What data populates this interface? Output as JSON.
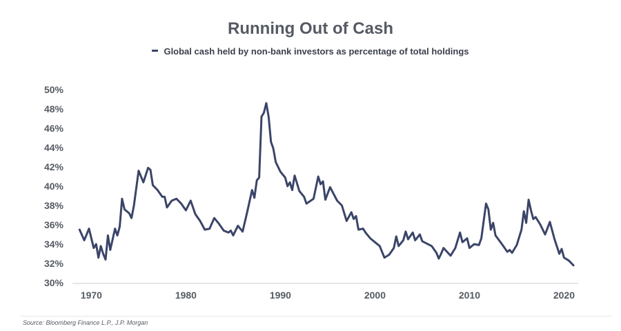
{
  "chart_data": {
    "type": "line",
    "title": "Running Out of Cash",
    "series": [
      {
        "name": "Global cash held by non-bank investors as percentage of total holdings",
        "color": "#3b4468",
        "points": [
          [
            1968.75,
            35.5
          ],
          [
            1969.25,
            34.4
          ],
          [
            1969.75,
            35.6
          ],
          [
            1970.25,
            33.6
          ],
          [
            1970.5,
            34.0
          ],
          [
            1970.75,
            32.6
          ],
          [
            1971.0,
            33.8
          ],
          [
            1971.25,
            33.0
          ],
          [
            1971.5,
            32.4
          ],
          [
            1971.75,
            34.9
          ],
          [
            1972.0,
            33.4
          ],
          [
            1972.5,
            35.6
          ],
          [
            1972.75,
            34.9
          ],
          [
            1973.0,
            35.8
          ],
          [
            1973.25,
            38.7
          ],
          [
            1973.5,
            37.6
          ],
          [
            1974.0,
            37.2
          ],
          [
            1974.25,
            36.7
          ],
          [
            1974.5,
            38.0
          ],
          [
            1975.0,
            41.6
          ],
          [
            1975.5,
            40.4
          ],
          [
            1976.0,
            41.9
          ],
          [
            1976.25,
            41.7
          ],
          [
            1976.5,
            40.1
          ],
          [
            1977.0,
            39.6
          ],
          [
            1977.5,
            38.9
          ],
          [
            1977.75,
            38.9
          ],
          [
            1978.0,
            37.8
          ],
          [
            1978.5,
            38.5
          ],
          [
            1979.0,
            38.7
          ],
          [
            1979.5,
            38.2
          ],
          [
            1980.0,
            37.5
          ],
          [
            1980.5,
            38.5
          ],
          [
            1981.0,
            37.1
          ],
          [
            1981.5,
            36.4
          ],
          [
            1982.0,
            35.5
          ],
          [
            1982.5,
            35.6
          ],
          [
            1983.0,
            36.7
          ],
          [
            1983.5,
            36.1
          ],
          [
            1984.0,
            35.4
          ],
          [
            1984.5,
            35.2
          ],
          [
            1984.75,
            35.4
          ],
          [
            1985.0,
            34.9
          ],
          [
            1985.5,
            35.9
          ],
          [
            1986.0,
            35.3
          ],
          [
            1986.5,
            37.4
          ],
          [
            1987.0,
            39.6
          ],
          [
            1987.25,
            38.8
          ],
          [
            1987.5,
            40.6
          ],
          [
            1987.75,
            40.9
          ],
          [
            1988.0,
            47.2
          ],
          [
            1988.25,
            47.6
          ],
          [
            1988.5,
            48.6
          ],
          [
            1988.75,
            47.2
          ],
          [
            1989.0,
            44.6
          ],
          [
            1989.25,
            43.9
          ],
          [
            1989.5,
            42.5
          ],
          [
            1990.0,
            41.5
          ],
          [
            1990.5,
            40.9
          ],
          [
            1990.75,
            40.0
          ],
          [
            1991.0,
            40.4
          ],
          [
            1991.25,
            39.6
          ],
          [
            1991.5,
            41.1
          ],
          [
            1992.0,
            39.5
          ],
          [
            1992.5,
            38.9
          ],
          [
            1992.75,
            38.2
          ],
          [
            1993.5,
            38.7
          ],
          [
            1994.0,
            41.0
          ],
          [
            1994.25,
            40.2
          ],
          [
            1994.5,
            40.5
          ],
          [
            1994.75,
            38.6
          ],
          [
            1995.25,
            39.9
          ],
          [
            1996.0,
            38.5
          ],
          [
            1996.5,
            38.0
          ],
          [
            1997.0,
            36.4
          ],
          [
            1997.5,
            37.3
          ],
          [
            1997.75,
            36.6
          ],
          [
            1998.0,
            36.9
          ],
          [
            1998.25,
            35.5
          ],
          [
            1998.75,
            35.6
          ],
          [
            1999.0,
            35.2
          ],
          [
            1999.5,
            34.6
          ],
          [
            2000.0,
            34.2
          ],
          [
            2000.5,
            33.8
          ],
          [
            2001.0,
            32.6
          ],
          [
            2001.5,
            32.9
          ],
          [
            2002.0,
            33.6
          ],
          [
            2002.25,
            34.8
          ],
          [
            2002.5,
            33.8
          ],
          [
            2003.0,
            34.4
          ],
          [
            2003.25,
            35.3
          ],
          [
            2003.5,
            34.5
          ],
          [
            2004.0,
            35.2
          ],
          [
            2004.25,
            34.4
          ],
          [
            2004.75,
            35.0
          ],
          [
            2005.0,
            34.3
          ],
          [
            2006.0,
            33.8
          ],
          [
            2006.5,
            33.1
          ],
          [
            2006.75,
            32.5
          ],
          [
            2007.0,
            33.0
          ],
          [
            2007.25,
            33.6
          ],
          [
            2008.0,
            32.8
          ],
          [
            2008.5,
            33.6
          ],
          [
            2009.0,
            35.2
          ],
          [
            2009.25,
            34.2
          ],
          [
            2009.75,
            34.6
          ],
          [
            2010.0,
            33.6
          ],
          [
            2010.5,
            34.0
          ],
          [
            2011.0,
            33.9
          ],
          [
            2011.25,
            34.6
          ],
          [
            2011.75,
            38.2
          ],
          [
            2012.0,
            37.6
          ],
          [
            2012.25,
            35.5
          ],
          [
            2012.5,
            36.2
          ],
          [
            2012.75,
            34.9
          ],
          [
            2013.5,
            33.9
          ],
          [
            2014.0,
            33.2
          ],
          [
            2014.25,
            33.4
          ],
          [
            2014.5,
            33.1
          ],
          [
            2015.0,
            33.9
          ],
          [
            2015.5,
            35.5
          ],
          [
            2015.75,
            37.4
          ],
          [
            2016.0,
            36.2
          ],
          [
            2016.25,
            38.6
          ],
          [
            2016.5,
            37.5
          ],
          [
            2016.75,
            36.6
          ],
          [
            2017.0,
            36.8
          ],
          [
            2017.5,
            36.0
          ],
          [
            2018.0,
            35.0
          ],
          [
            2018.5,
            36.3
          ],
          [
            2019.0,
            34.5
          ],
          [
            2019.5,
            33.0
          ],
          [
            2019.75,
            33.5
          ],
          [
            2020.0,
            32.6
          ],
          [
            2020.5,
            32.3
          ],
          [
            2021.0,
            31.8
          ]
        ]
      }
    ],
    "x_ticks": [
      1970,
      1980,
      1990,
      2000,
      2010,
      2020
    ],
    "x_tick_labels": [
      "1970",
      "1980",
      "1990",
      "2000",
      "2010",
      "2020"
    ],
    "y_ticks": [
      30,
      32,
      34,
      36,
      38,
      40,
      42,
      44,
      46,
      48,
      50
    ],
    "y_tick_labels": [
      "30%",
      "32%",
      "34%",
      "36%",
      "38%",
      "40%",
      "42%",
      "44%",
      "46%",
      "48%",
      "50%"
    ],
    "xlim": [
      1968,
      2021.5
    ],
    "ylim": [
      30,
      50
    ],
    "xlabel": "",
    "ylabel": "",
    "grid": false,
    "legend_position": "top-center",
    "source": "Source: Bloomberg Finance L.P., J.P. Morgan"
  }
}
